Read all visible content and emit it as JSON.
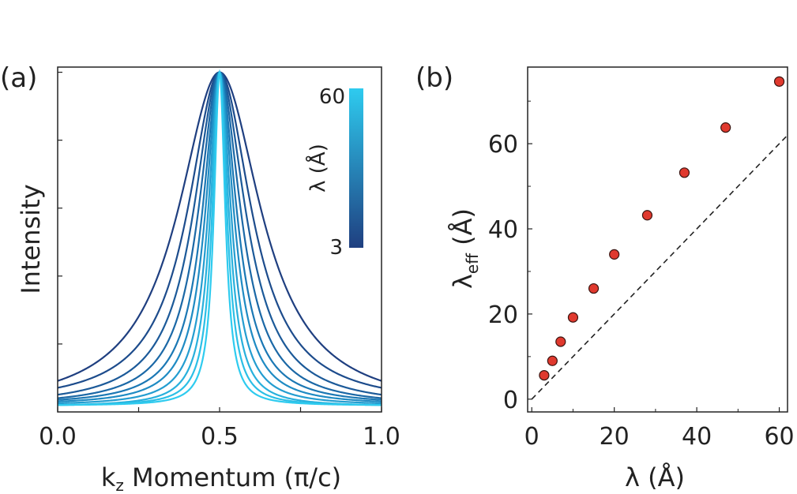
{
  "panels": {
    "a": {
      "label": "(a)"
    },
    "b": {
      "label": "(b)"
    }
  },
  "chart_data": [
    {
      "type": "line",
      "panel": "(a)",
      "title": "",
      "xlabel_main": "k",
      "xlabel_sub": "z",
      "xlabel_rest": " Momentum (π/c)",
      "ylabel": "Intensity",
      "xlim": [
        0.0,
        1.0
      ],
      "ylim": [
        0.0,
        1.0
      ],
      "xticks": [
        0.0,
        0.25,
        0.5,
        0.75,
        1.0
      ],
      "xtick_labels": [
        "0.0",
        "",
        "0.5",
        "",
        "1.0"
      ],
      "grid": false,
      "colorbar": {
        "label": "λ (Å)",
        "min_label": "3",
        "max_label": "60",
        "color_low": "#1f3f80",
        "color_high": "#2ecbef"
      },
      "lambda_values": [
        3,
        5,
        7,
        10,
        15,
        20,
        28,
        37,
        47,
        60
      ],
      "peak_center": 0.5,
      "peak_height": 0.985,
      "baseline_at_edges": [
        0.09,
        0.07,
        0.05,
        0.04,
        0.035,
        0.03,
        0.025,
        0.02,
        0.02,
        0.02
      ],
      "half_width_half_max": [
        0.155,
        0.118,
        0.096,
        0.078,
        0.063,
        0.052,
        0.042,
        0.034,
        0.027,
        0.021
      ],
      "line_colors": [
        "#1f3f80",
        "#1d4c8c",
        "#1c5a99",
        "#1b68a6",
        "#1b78b4",
        "#1f8bc3",
        "#249dd0",
        "#28b0dc",
        "#2bbfe6",
        "#2ecbef"
      ]
    },
    {
      "type": "scatter",
      "panel": "(b)",
      "title": "",
      "xlabel": "λ (Å)",
      "ylabel_main": "λ",
      "ylabel_sub": "eff",
      "ylabel_rest": " (Å)",
      "xlim": [
        -1,
        62
      ],
      "ylim": [
        -3,
        78
      ],
      "xticks": [
        0,
        20,
        40,
        60
      ],
      "yticks": [
        0,
        20,
        40,
        60
      ],
      "grid": false,
      "x": [
        3,
        5,
        7,
        10,
        15,
        20,
        28,
        37,
        47,
        60
      ],
      "y": [
        5.6,
        9.0,
        13.5,
        19.2,
        26.0,
        34.0,
        43.2,
        53.2,
        63.8,
        74.6
      ],
      "marker_color": "#e0392e",
      "reference_line": {
        "style": "dashed",
        "description": "y = x",
        "color": "#222222"
      }
    }
  ]
}
